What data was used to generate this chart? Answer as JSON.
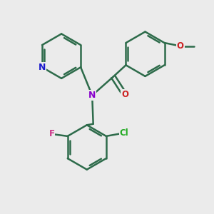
{
  "bg_color": "#ebebeb",
  "bond_color": "#2d6b4a",
  "bond_width": 1.8,
  "atom_colors": {
    "N_pyridine": "#1a1acc",
    "N_amide": "#8800cc",
    "O": "#cc2222",
    "F": "#cc3388",
    "Cl": "#22aa22"
  },
  "xlim": [
    0,
    10
  ],
  "ylim": [
    0,
    10
  ]
}
